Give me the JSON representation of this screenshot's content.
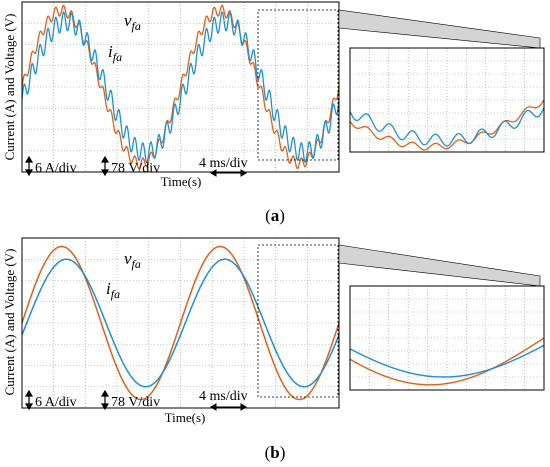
{
  "panels": [
    {
      "label": "(a)",
      "label_letter": "a",
      "ylabel": "Current (A) and Voltage (V)",
      "xlabel": "Time(s)",
      "scale_current": "6 A/div",
      "scale_voltage": "78 V/div",
      "scale_time": "4 ms/div",
      "series_labels": {
        "voltage": "v",
        "voltage_sub": "fa",
        "current": "i",
        "current_sub": "fa"
      }
    },
    {
      "label": "(b)",
      "label_letter": "b",
      "ylabel": "Current (A) and Voltage (V)",
      "xlabel": "Time(s)",
      "scale_current": "6 A/div",
      "scale_voltage": "78 V/div",
      "scale_time": "4 ms/div",
      "series_labels": {
        "voltage": "v",
        "voltage_sub": "fa",
        "current": "i",
        "current_sub": "fa"
      }
    }
  ],
  "colors": {
    "voltage": "#E0601A",
    "current": "#1E90D8",
    "grid": "#9a9a9a",
    "frame": "#000000",
    "zoom_fill": "#d4d4d4"
  },
  "chart_data": [
    {
      "type": "line",
      "panel": "a",
      "xlabel": "Time(s)",
      "ylabel": "Current (A) and Voltage (V)",
      "x_unit": "ms",
      "xlim": [
        0,
        40
      ],
      "ylim_div": [
        -4,
        4
      ],
      "grid": true,
      "period_ms": 20,
      "series": [
        {
          "name": "v_fa",
          "amplitude_div": 3.6,
          "phase_ms": 0,
          "ripple_div": 0.25,
          "ripple_freq_hz": 1000
        },
        {
          "name": "i_fa",
          "amplitude_div": 3.1,
          "phase_ms": 0.6,
          "ripple_div": 0.45,
          "ripple_freq_hz": 1000
        }
      ],
      "zoom_window_ms": [
        31.5,
        40
      ]
    },
    {
      "type": "line",
      "panel": "b",
      "xlabel": "Time(s)",
      "ylabel": "Current (A) and Voltage (V)",
      "x_unit": "ms",
      "xlim": [
        0,
        40
      ],
      "ylim_div": [
        -4,
        4
      ],
      "grid": true,
      "period_ms": 20,
      "series": [
        {
          "name": "v_fa",
          "amplitude_div": 3.6,
          "phase_ms": 0,
          "ripple_div": 0,
          "ripple_freq_hz": 0
        },
        {
          "name": "i_fa",
          "amplitude_div": 3.0,
          "phase_ms": 0.6,
          "ripple_div": 0,
          "ripple_freq_hz": 0
        }
      ],
      "zoom_window_ms": [
        31.5,
        40
      ]
    }
  ]
}
